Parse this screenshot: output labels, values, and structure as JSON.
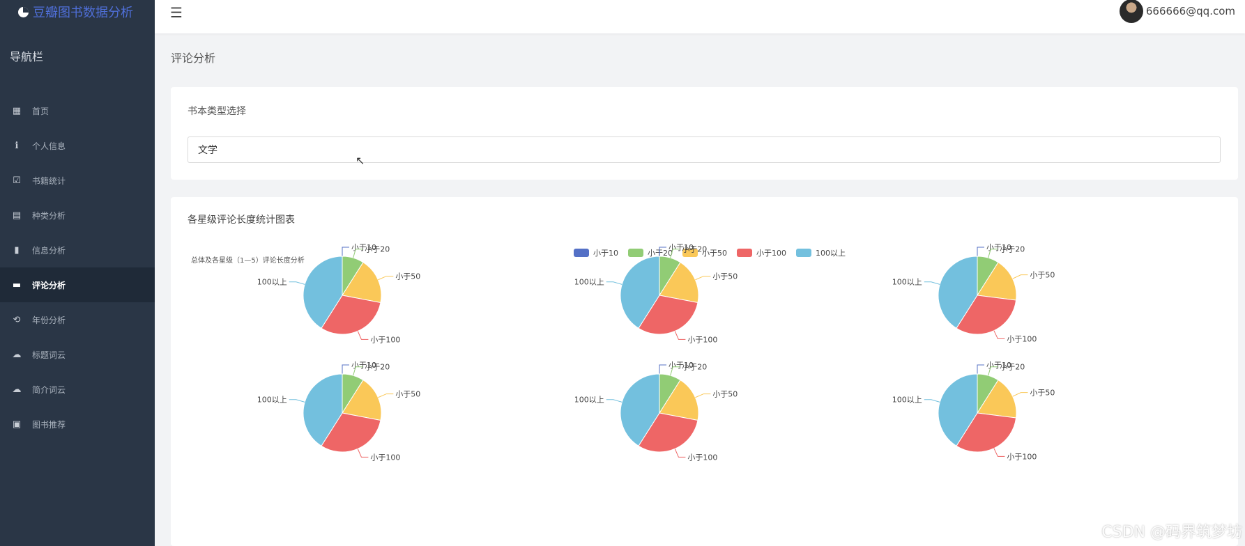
{
  "app": {
    "title": "豆瓣图书数据分析"
  },
  "sidebar": {
    "heading": "导航栏",
    "items": [
      {
        "label": "首页",
        "icon": "dashboard-icon"
      },
      {
        "label": "个人信息",
        "icon": "user-icon"
      },
      {
        "label": "书籍统计",
        "icon": "calendar-check-icon"
      },
      {
        "label": "种类分析",
        "icon": "stack-icon"
      },
      {
        "label": "信息分析",
        "icon": "bar-chart-icon"
      },
      {
        "label": "评论分析",
        "icon": "comment-icon",
        "active": true
      },
      {
        "label": "年份分析",
        "icon": "history-icon"
      },
      {
        "label": "标题词云",
        "icon": "cloud-icon"
      },
      {
        "label": "简介词云",
        "icon": "cloud-download-icon"
      },
      {
        "label": "图书推荐",
        "icon": "square-icon"
      }
    ]
  },
  "topbar": {
    "menu_icon": "hamburger-icon",
    "user_email": "666666@qq.com"
  },
  "page": {
    "title": "评论分析"
  },
  "filter": {
    "title": "书本类型选择",
    "selected": "文学"
  },
  "chart_card": {
    "title": "各星级评论长度统计图表"
  },
  "chart_data": {
    "type": "pie",
    "subtitle": "总体及各星级（1—5）评论长度分析",
    "categories": [
      "小于10",
      "小于20",
      "小于50",
      "小于100",
      "100以上"
    ],
    "colors": [
      "#5470c6",
      "#91cc75",
      "#fac858",
      "#ee6666",
      "#73c0de"
    ],
    "legend_position": "top",
    "pies": [
      {
        "values": [
          0,
          9,
          19,
          31,
          41
        ]
      },
      {
        "values": [
          0,
          9,
          19,
          31,
          41
        ]
      },
      {
        "values": [
          0,
          9,
          18,
          32,
          41
        ]
      },
      {
        "values": [
          0,
          9,
          19,
          31,
          41
        ]
      },
      {
        "values": [
          0,
          9,
          19,
          31,
          41
        ]
      },
      {
        "values": [
          0,
          9,
          18,
          32,
          41
        ]
      }
    ]
  },
  "watermark": "CSDN @码界筑梦坊"
}
